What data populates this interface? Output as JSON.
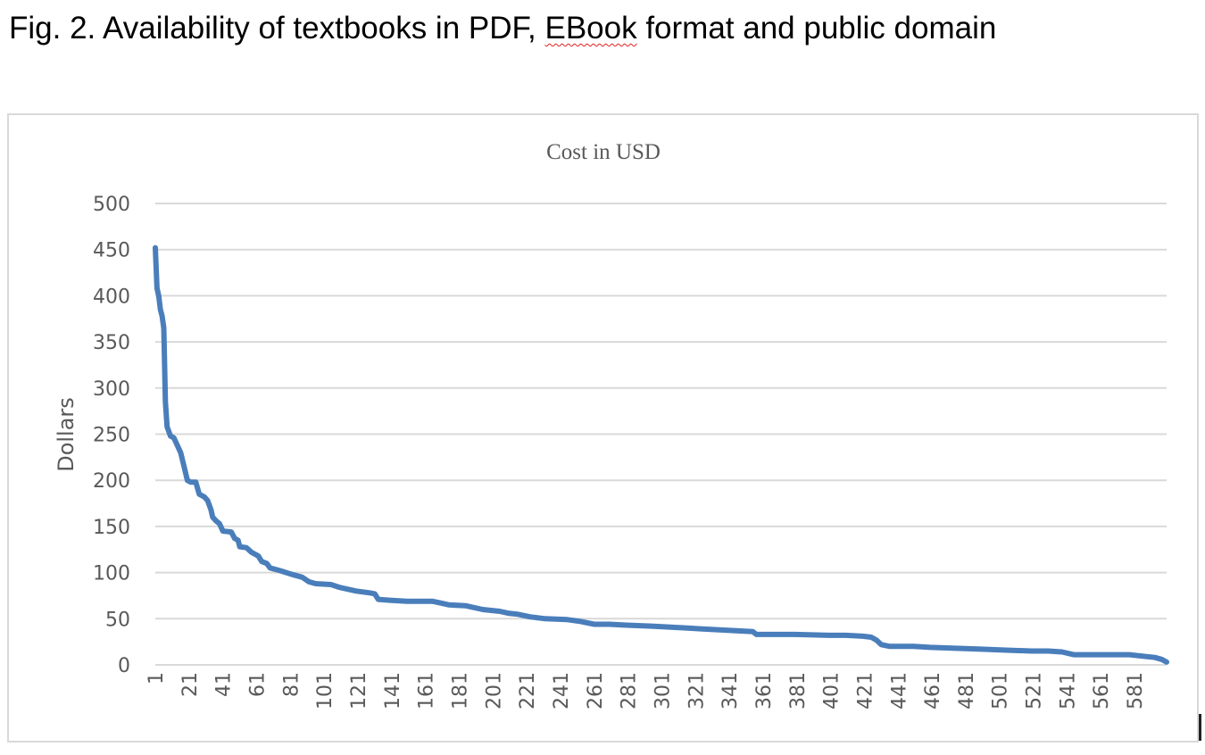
{
  "caption": {
    "prefix": "Fig. 2. Availability of textbooks in PDF, ",
    "flagged_word": "EBook",
    "suffix": " format and public domain"
  },
  "chart_data": {
    "type": "line",
    "title": "Cost in USD",
    "xlabel": "",
    "ylabel": "Dollars",
    "ylim": [
      0,
      500
    ],
    "yticks": [
      0,
      50,
      100,
      150,
      200,
      250,
      300,
      350,
      400,
      450,
      500
    ],
    "xlim": [
      1,
      600
    ],
    "xticks": [
      1,
      21,
      41,
      61,
      81,
      101,
      121,
      141,
      161,
      181,
      201,
      221,
      241,
      261,
      281,
      301,
      321,
      341,
      361,
      381,
      401,
      421,
      441,
      461,
      481,
      501,
      521,
      541,
      561,
      581
    ],
    "grid": true,
    "legend": "none",
    "series": [
      {
        "color": "#4a7ebb",
        "points": [
          [
            1,
            452
          ],
          [
            2,
            408
          ],
          [
            3,
            400
          ],
          [
            4,
            385
          ],
          [
            5,
            378
          ],
          [
            6,
            365
          ],
          [
            7,
            285
          ],
          [
            8,
            258
          ],
          [
            10,
            248
          ],
          [
            12,
            246
          ],
          [
            14,
            238
          ],
          [
            16,
            230
          ],
          [
            18,
            215
          ],
          [
            20,
            200
          ],
          [
            22,
            198
          ],
          [
            25,
            198
          ],
          [
            27,
            185
          ],
          [
            30,
            182
          ],
          [
            32,
            178
          ],
          [
            34,
            168
          ],
          [
            35,
            160
          ],
          [
            37,
            156
          ],
          [
            39,
            153
          ],
          [
            41,
            145
          ],
          [
            46,
            144
          ],
          [
            48,
            137
          ],
          [
            50,
            135
          ],
          [
            51,
            128
          ],
          [
            55,
            127
          ],
          [
            58,
            122
          ],
          [
            62,
            118
          ],
          [
            64,
            112
          ],
          [
            67,
            110
          ],
          [
            69,
            105
          ],
          [
            75,
            102
          ],
          [
            82,
            98
          ],
          [
            88,
            95
          ],
          [
            92,
            90
          ],
          [
            96,
            88
          ],
          [
            105,
            87
          ],
          [
            110,
            84
          ],
          [
            120,
            80
          ],
          [
            128,
            78
          ],
          [
            131,
            77
          ],
          [
            133,
            71
          ],
          [
            140,
            70
          ],
          [
            150,
            69
          ],
          [
            165,
            69
          ],
          [
            170,
            67
          ],
          [
            175,
            65
          ],
          [
            185,
            64
          ],
          [
            195,
            60
          ],
          [
            205,
            58
          ],
          [
            210,
            56
          ],
          [
            215,
            55
          ],
          [
            223,
            52
          ],
          [
            232,
            50
          ],
          [
            245,
            49
          ],
          [
            253,
            47
          ],
          [
            261,
            44
          ],
          [
            270,
            44
          ],
          [
            280,
            43
          ],
          [
            295,
            42
          ],
          [
            305,
            41
          ],
          [
            315,
            40
          ],
          [
            325,
            39
          ],
          [
            335,
            38
          ],
          [
            345,
            37
          ],
          [
            355,
            36
          ],
          [
            357,
            33
          ],
          [
            380,
            33
          ],
          [
            400,
            32
          ],
          [
            410,
            32
          ],
          [
            420,
            31
          ],
          [
            425,
            30
          ],
          [
            428,
            27
          ],
          [
            431,
            22
          ],
          [
            436,
            20
          ],
          [
            450,
            20
          ],
          [
            460,
            19
          ],
          [
            475,
            18
          ],
          [
            490,
            17
          ],
          [
            505,
            16
          ],
          [
            520,
            15
          ],
          [
            530,
            15
          ],
          [
            538,
            14
          ],
          [
            545,
            11
          ],
          [
            560,
            11
          ],
          [
            578,
            11
          ],
          [
            588,
            9
          ],
          [
            593,
            8
          ],
          [
            597,
            6
          ],
          [
            600,
            3
          ]
        ]
      }
    ]
  }
}
